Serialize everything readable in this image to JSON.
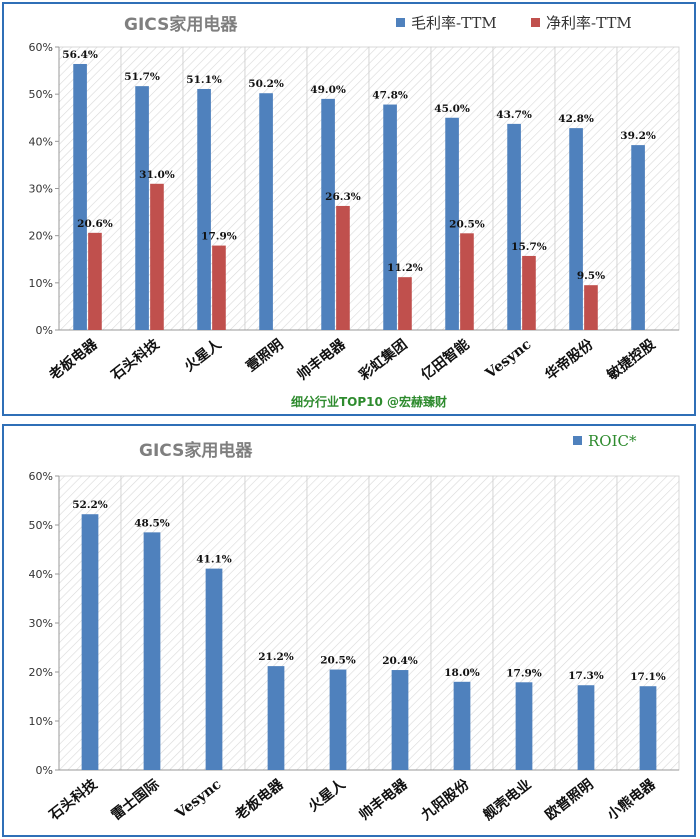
{
  "chart_data": [
    {
      "type": "bar",
      "title": "GICS家用电器",
      "categories": [
        "老板电器",
        "石头科技",
        "火星人",
        "壹照明",
        "帅丰电器",
        "彩虹集团",
        "亿田智能",
        "Vesync",
        "华帝股份",
        "敏捷控股"
      ],
      "series": [
        {
          "name": "毛利率-TTM",
          "color": "#4f81bd",
          "values": [
            56.4,
            51.7,
            51.1,
            50.2,
            49.0,
            47.8,
            45.0,
            43.7,
            42.8,
            39.2
          ]
        },
        {
          "name": "净利率-TTM",
          "color": "#c0504d",
          "values": [
            20.6,
            31.0,
            17.9,
            null,
            26.3,
            11.2,
            20.5,
            15.7,
            9.5,
            null
          ]
        }
      ],
      "data_labels_first": [
        "56.4%",
        "51.7%",
        "51.1%",
        "50.2%",
        "49.0%",
        "47.8%",
        "45.0%",
        "43.7%",
        "42.8%",
        "39.2%"
      ],
      "data_labels_second": [
        "20.6%",
        "31.0%",
        "17.9%",
        "",
        "26.3%",
        "11.2%",
        "20.5%",
        "15.7%",
        "9.5%",
        ""
      ],
      "ylim": [
        0,
        60
      ],
      "yticks": [
        "0%",
        "10%",
        "20%",
        "30%",
        "40%",
        "50%",
        "60%"
      ],
      "xlabel": "",
      "ylabel": "",
      "grid": "hatched-columns",
      "legend": "top-right",
      "caption": "细分行业TOP10 @宏赫臻财"
    },
    {
      "type": "bar",
      "title": "GICS家用电器",
      "categories": [
        "石头科技",
        "雷士国际",
        "Vesync",
        "老板电器",
        "火星人",
        "帅丰电器",
        "九阳股份",
        "舰壳电业",
        "欧普照明",
        "小熊电器"
      ],
      "series": [
        {
          "name": "ROIC*",
          "color": "#4f81bd",
          "values": [
            52.2,
            48.5,
            41.1,
            21.2,
            20.5,
            20.4,
            18.0,
            17.9,
            17.3,
            17.1
          ]
        }
      ],
      "data_labels_first": [
        "52.2%",
        "48.5%",
        "41.1%",
        "21.2%",
        "20.5%",
        "20.4%",
        "18.0%",
        "17.9%",
        "17.3%",
        "17.1%"
      ],
      "ylim": [
        0,
        60
      ],
      "yticks": [
        "0%",
        "10%",
        "20%",
        "30%",
        "40%",
        "50%",
        "60%"
      ],
      "xlabel": "",
      "ylabel": "",
      "grid": "hatched-columns",
      "legend": "top-right"
    }
  ]
}
